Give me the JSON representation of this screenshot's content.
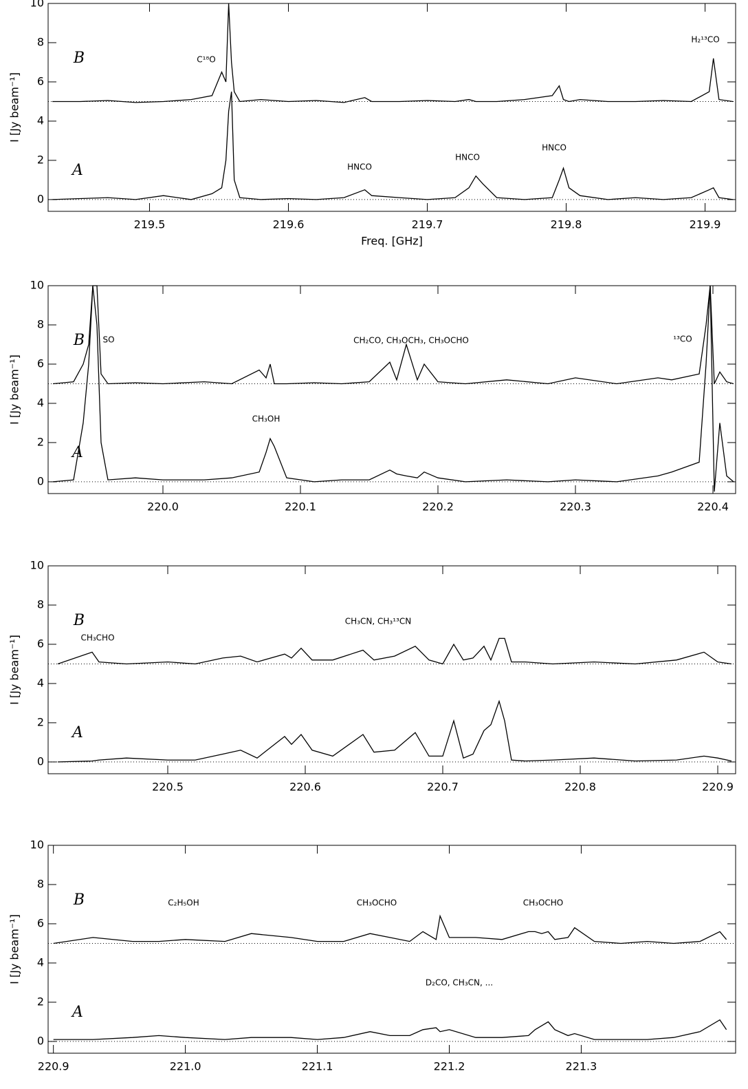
{
  "chart_data": [
    {
      "type": "line",
      "ylabel": "I [Jy beam⁻¹]",
      "xlabel": "Freq. [GHz]",
      "annotations": [
        "C¹⁸O",
        "HNCO",
        "HNCO",
        "HNCO",
        "H₂¹³CO"
      ],
      "xlim": [
        219.427,
        219.922
      ],
      "xticks": [
        219.5,
        219.6,
        219.7,
        219.8,
        219.9
      ],
      "ylim": [
        -0.6,
        10
      ],
      "yticks": [
        0,
        2,
        4,
        6,
        8,
        10
      ],
      "baselines": [
        0,
        5
      ],
      "x": [
        219.43,
        219.45,
        219.47,
        219.49,
        219.51,
        219.53,
        219.545,
        219.552,
        219.555,
        219.557,
        219.559,
        219.561,
        219.565,
        219.58,
        219.6,
        219.62,
        219.64,
        219.655,
        219.66,
        219.68,
        219.7,
        219.72,
        219.73,
        219.735,
        219.74,
        219.75,
        219.77,
        219.79,
        219.795,
        219.798,
        219.802,
        219.81,
        219.83,
        219.85,
        219.87,
        219.89,
        219.903,
        219.906,
        219.91,
        219.92
      ],
      "series": [
        {
          "name": "B",
          "color": "#000000",
          "values": [
            5,
            5,
            5.05,
            4.95,
            5,
            5.1,
            5.3,
            6.5,
            6,
            10,
            7,
            5.5,
            5,
            5.1,
            5,
            5.05,
            4.95,
            5.2,
            5,
            5,
            5.05,
            5,
            5.1,
            5,
            5,
            5,
            5.1,
            5.3,
            5.8,
            5.1,
            5,
            5.1,
            5,
            5,
            5.05,
            5,
            5.5,
            7.2,
            5.1,
            5
          ]
        },
        {
          "name": "A",
          "color": "#000000",
          "values": [
            0,
            0.05,
            0.1,
            0,
            0.2,
            0,
            0.3,
            0.6,
            2,
            4.5,
            5.5,
            1,
            0.1,
            0,
            0.05,
            0,
            0.1,
            0.5,
            0.2,
            0.1,
            0,
            0.1,
            0.6,
            1.2,
            0.8,
            0.1,
            0,
            0.1,
            1,
            1.6,
            0.6,
            0.2,
            0,
            0.1,
            0,
            0.1,
            0.5,
            0.6,
            0.1,
            0
          ]
        }
      ]
    },
    {
      "type": "line",
      "ylabel": "I [Jy beam⁻¹]",
      "annotations": [
        "SO",
        "CH₂CO, CH₃OCH₃, CH₃OCHO",
        "¹³CO",
        "CH₃OH"
      ],
      "xlim": [
        219.9165,
        220.4165
      ],
      "xticks": [
        {
          "value": 220,
          "label": "220.0"
        },
        220.1,
        220.2,
        220.3,
        220.4
      ],
      "ylim": [
        -0.6,
        10
      ],
      "yticks": [
        0,
        2,
        4,
        6,
        8,
        10
      ],
      "baselines": [
        0,
        5
      ],
      "x": [
        219.92,
        219.935,
        219.942,
        219.946,
        219.949,
        219.952,
        219.955,
        219.96,
        219.98,
        220.0,
        220.03,
        220.05,
        220.07,
        220.075,
        220.078,
        220.081,
        220.09,
        220.11,
        220.13,
        220.15,
        220.165,
        220.17,
        220.177,
        220.185,
        220.19,
        220.2,
        220.22,
        220.25,
        220.28,
        220.3,
        220.33,
        220.36,
        220.37,
        220.39,
        220.395,
        220.398,
        220.401,
        220.405,
        220.41,
        220.415
      ],
      "series": [
        {
          "name": "B",
          "color": "#000000",
          "values": [
            5,
            5.1,
            6,
            7,
            10,
            10,
            5.5,
            5,
            5.05,
            5,
            5.1,
            5,
            5.7,
            5.3,
            6,
            5,
            5,
            5.05,
            5,
            5.1,
            6.1,
            5.2,
            7,
            5.2,
            6,
            5.1,
            5,
            5.2,
            5,
            5.3,
            5,
            5.3,
            5.2,
            5.5,
            8,
            10,
            5,
            5.6,
            5.1,
            5
          ]
        },
        {
          "name": "A",
          "color": "#000000",
          "values": [
            0,
            0.1,
            3,
            6,
            10,
            8,
            2,
            0.1,
            0.2,
            0.1,
            0.1,
            0.2,
            0.5,
            1.5,
            2.2,
            1.8,
            0.2,
            0,
            0.1,
            0.1,
            0.6,
            0.4,
            0.3,
            0.2,
            0.5,
            0.2,
            0,
            0.1,
            0,
            0.1,
            0,
            0.3,
            0.5,
            1,
            6,
            10,
            -0.5,
            3,
            0.3,
            0
          ]
        }
      ]
    },
    {
      "type": "line",
      "ylabel": "I [Jy beam⁻¹]",
      "annotations": [
        "CH₃CHO",
        "CH₃CN, CH₃¹³CN"
      ],
      "xlim": [
        220.413,
        220.913
      ],
      "xticks": [
        220.5,
        220.6,
        220.7,
        220.8,
        220.9
      ],
      "ylim": [
        -0.6,
        10
      ],
      "yticks": [
        0,
        2,
        4,
        6,
        8,
        10
      ],
      "baselines": [
        0,
        5
      ],
      "x": [
        220.42,
        220.445,
        220.45,
        220.47,
        220.5,
        220.52,
        220.54,
        220.553,
        220.565,
        220.585,
        220.59,
        220.597,
        220.605,
        220.62,
        220.642,
        220.65,
        220.665,
        220.68,
        220.69,
        220.7,
        220.708,
        220.715,
        220.722,
        220.73,
        220.735,
        220.741,
        220.745,
        220.75,
        220.76,
        220.78,
        220.81,
        220.84,
        220.87,
        220.89,
        220.9,
        220.91
      ],
      "series": [
        {
          "name": "B",
          "color": "#000000",
          "values": [
            5,
            5.6,
            5.1,
            5,
            5.1,
            5,
            5.3,
            5.4,
            5.1,
            5.5,
            5.3,
            5.8,
            5.2,
            5.2,
            5.7,
            5.2,
            5.4,
            5.9,
            5.2,
            5,
            6,
            5.2,
            5.3,
            5.9,
            5.2,
            6.3,
            6.3,
            5.1,
            5.1,
            5,
            5.1,
            5,
            5.2,
            5.6,
            5.1,
            5
          ]
        },
        {
          "name": "A",
          "color": "#000000",
          "values": [
            0,
            0.05,
            0.1,
            0.2,
            0.1,
            0.1,
            0.4,
            0.6,
            0.2,
            1.3,
            0.9,
            1.4,
            0.6,
            0.3,
            1.4,
            0.5,
            0.6,
            1.5,
            0.3,
            0.3,
            2.1,
            0.2,
            0.4,
            1.6,
            1.9,
            3.1,
            2.1,
            0.1,
            0.05,
            0.1,
            0.2,
            0.05,
            0.1,
            0.3,
            0.2,
            0.05
          ]
        }
      ]
    },
    {
      "type": "line",
      "ylabel": "I [Jy beam⁻¹]",
      "annotations": [
        "C₂H₅OH",
        "CH₃OCHO",
        "CH₃OCHO",
        "D₂CO, CH₃CN, ..."
      ],
      "xlim": [
        220.896,
        221.417
      ],
      "xticks": [
        220.9,
        {
          "value": 221,
          "label": "221.0"
        },
        221.1,
        221.2,
        221.3
      ],
      "ylim": [
        -0.6,
        10
      ],
      "yticks": [
        0,
        2,
        4,
        6,
        8,
        10
      ],
      "baselines": [
        0,
        5
      ],
      "x": [
        220.9,
        220.93,
        220.96,
        220.98,
        221.0,
        221.03,
        221.05,
        221.08,
        221.1,
        221.12,
        221.14,
        221.155,
        221.17,
        221.18,
        221.19,
        221.193,
        221.2,
        221.22,
        221.24,
        221.26,
        221.265,
        221.27,
        221.275,
        221.28,
        221.29,
        221.295,
        221.31,
        221.33,
        221.35,
        221.37,
        221.39,
        221.405,
        221.41
      ],
      "series": [
        {
          "name": "B",
          "color": "#000000",
          "values": [
            5,
            5.3,
            5.1,
            5.1,
            5.2,
            5.1,
            5.5,
            5.3,
            5.1,
            5.1,
            5.5,
            5.3,
            5.1,
            5.6,
            5.2,
            6.4,
            5.3,
            5.3,
            5.2,
            5.6,
            5.6,
            5.5,
            5.6,
            5.2,
            5.3,
            5.8,
            5.1,
            5,
            5.1,
            5,
            5.1,
            5.6,
            5.2
          ]
        },
        {
          "name": "A",
          "color": "#000000",
          "values": [
            0.1,
            0.1,
            0.2,
            0.3,
            0.2,
            0.1,
            0.2,
            0.2,
            0.1,
            0.2,
            0.5,
            0.3,
            0.3,
            0.6,
            0.7,
            0.5,
            0.6,
            0.2,
            0.2,
            0.3,
            0.6,
            0.8,
            1,
            0.6,
            0.3,
            0.4,
            0.1,
            0.1,
            0.1,
            0.2,
            0.5,
            1.1,
            0.6
          ]
        }
      ]
    }
  ]
}
